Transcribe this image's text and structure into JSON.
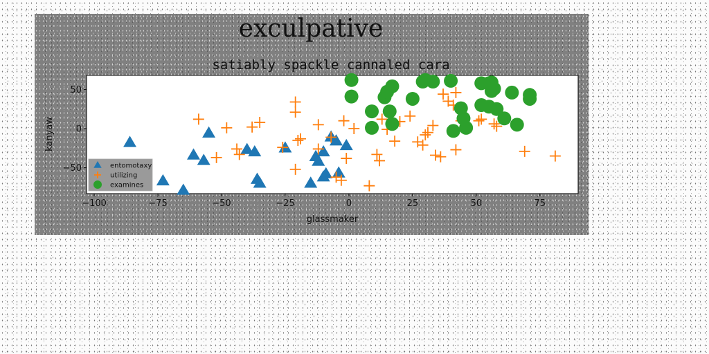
{
  "chart_data": {
    "type": "scatter",
    "suptitle": "exculpative",
    "title": "satiably spackle cannaled cara",
    "xlabel": "glassmaker",
    "ylabel": "kanyaw",
    "xlim": [
      -103,
      90
    ],
    "ylim": [
      -83,
      68
    ],
    "xticks": [
      -100,
      -75,
      -50,
      -25,
      0,
      25,
      50,
      75
    ],
    "yticks": [
      -50,
      0,
      50
    ],
    "xtick_labels": [
      "−100",
      "−75",
      "−50",
      "−25",
      "0",
      "25",
      "50",
      "75"
    ],
    "ytick_labels": [
      "−50",
      "0",
      "50"
    ],
    "grid": false,
    "legend_position": "lower-left",
    "series": [
      {
        "name": "entomotaxy",
        "marker": "triangle",
        "color": "#1f77b4",
        "points": [
          [
            -86,
            -18
          ],
          [
            -73,
            -67
          ],
          [
            -65,
            -79
          ],
          [
            -61,
            -34
          ],
          [
            -57,
            -41
          ],
          [
            -55,
            -6
          ],
          [
            -40,
            -27
          ],
          [
            -37,
            -30
          ],
          [
            -36,
            -65
          ],
          [
            -35,
            -70
          ],
          [
            -25,
            -25
          ],
          [
            -15,
            -70
          ],
          [
            -13,
            -36
          ],
          [
            -12,
            -42
          ],
          [
            -10,
            -30
          ],
          [
            -10,
            -62
          ],
          [
            -9,
            -58
          ],
          [
            -7,
            -11
          ],
          [
            -5,
            -16
          ],
          [
            -4,
            -57
          ],
          [
            -1,
            -22
          ]
        ]
      },
      {
        "name": "utilizing",
        "marker": "plus",
        "color": "#ff7f0e",
        "points": [
          [
            -59,
            12
          ],
          [
            -52,
            -37
          ],
          [
            -48,
            1
          ],
          [
            -44,
            -26
          ],
          [
            -43,
            -33
          ],
          [
            -38,
            2
          ],
          [
            -35,
            8
          ],
          [
            -26,
            -24
          ],
          [
            -21,
            -52
          ],
          [
            -21,
            34
          ],
          [
            -21,
            21
          ],
          [
            -20,
            -15
          ],
          [
            -19,
            -13
          ],
          [
            -12,
            -26
          ],
          [
            -12,
            5
          ],
          [
            -7,
            -11
          ],
          [
            -5,
            -62
          ],
          [
            -3,
            -66
          ],
          [
            -2,
            10
          ],
          [
            -1,
            -38
          ],
          [
            2,
            0
          ],
          [
            8,
            -73
          ],
          [
            11,
            -33
          ],
          [
            12,
            -41
          ],
          [
            13,
            12
          ],
          [
            15,
            -1
          ],
          [
            18,
            -16
          ],
          [
            20,
            9
          ],
          [
            24,
            16
          ],
          [
            27,
            -17
          ],
          [
            29,
            -21
          ],
          [
            30,
            -8
          ],
          [
            31,
            -5
          ],
          [
            33,
            4
          ],
          [
            34,
            -34
          ],
          [
            36,
            -36
          ],
          [
            37,
            44
          ],
          [
            39,
            35
          ],
          [
            41,
            30
          ],
          [
            42,
            -27
          ],
          [
            42,
            46
          ],
          [
            44,
            10
          ],
          [
            51,
            10
          ],
          [
            52,
            12
          ],
          [
            57,
            6
          ],
          [
            58,
            3
          ],
          [
            69,
            -29
          ],
          [
            81,
            -35
          ]
        ]
      },
      {
        "name": "examines",
        "marker": "circle",
        "color": "#2ca02c",
        "points": [
          [
            1,
            62
          ],
          [
            1,
            41
          ],
          [
            9,
            22
          ],
          [
            9,
            1
          ],
          [
            14,
            40
          ],
          [
            15,
            47
          ],
          [
            16,
            22
          ],
          [
            17,
            54
          ],
          [
            17,
            6
          ],
          [
            25,
            38
          ],
          [
            29,
            60
          ],
          [
            30,
            62
          ],
          [
            33,
            60
          ],
          [
            40,
            61
          ],
          [
            41,
            -3
          ],
          [
            44,
            26
          ],
          [
            45,
            13
          ],
          [
            46,
            1
          ],
          [
            52,
            58
          ],
          [
            52,
            30
          ],
          [
            55,
            28
          ],
          [
            55,
            58
          ],
          [
            56,
            48
          ],
          [
            56,
            59
          ],
          [
            57,
            51
          ],
          [
            58,
            25
          ],
          [
            61,
            13
          ],
          [
            64,
            46
          ],
          [
            66,
            5
          ],
          [
            71,
            38
          ],
          [
            71,
            43
          ]
        ]
      }
    ]
  }
}
